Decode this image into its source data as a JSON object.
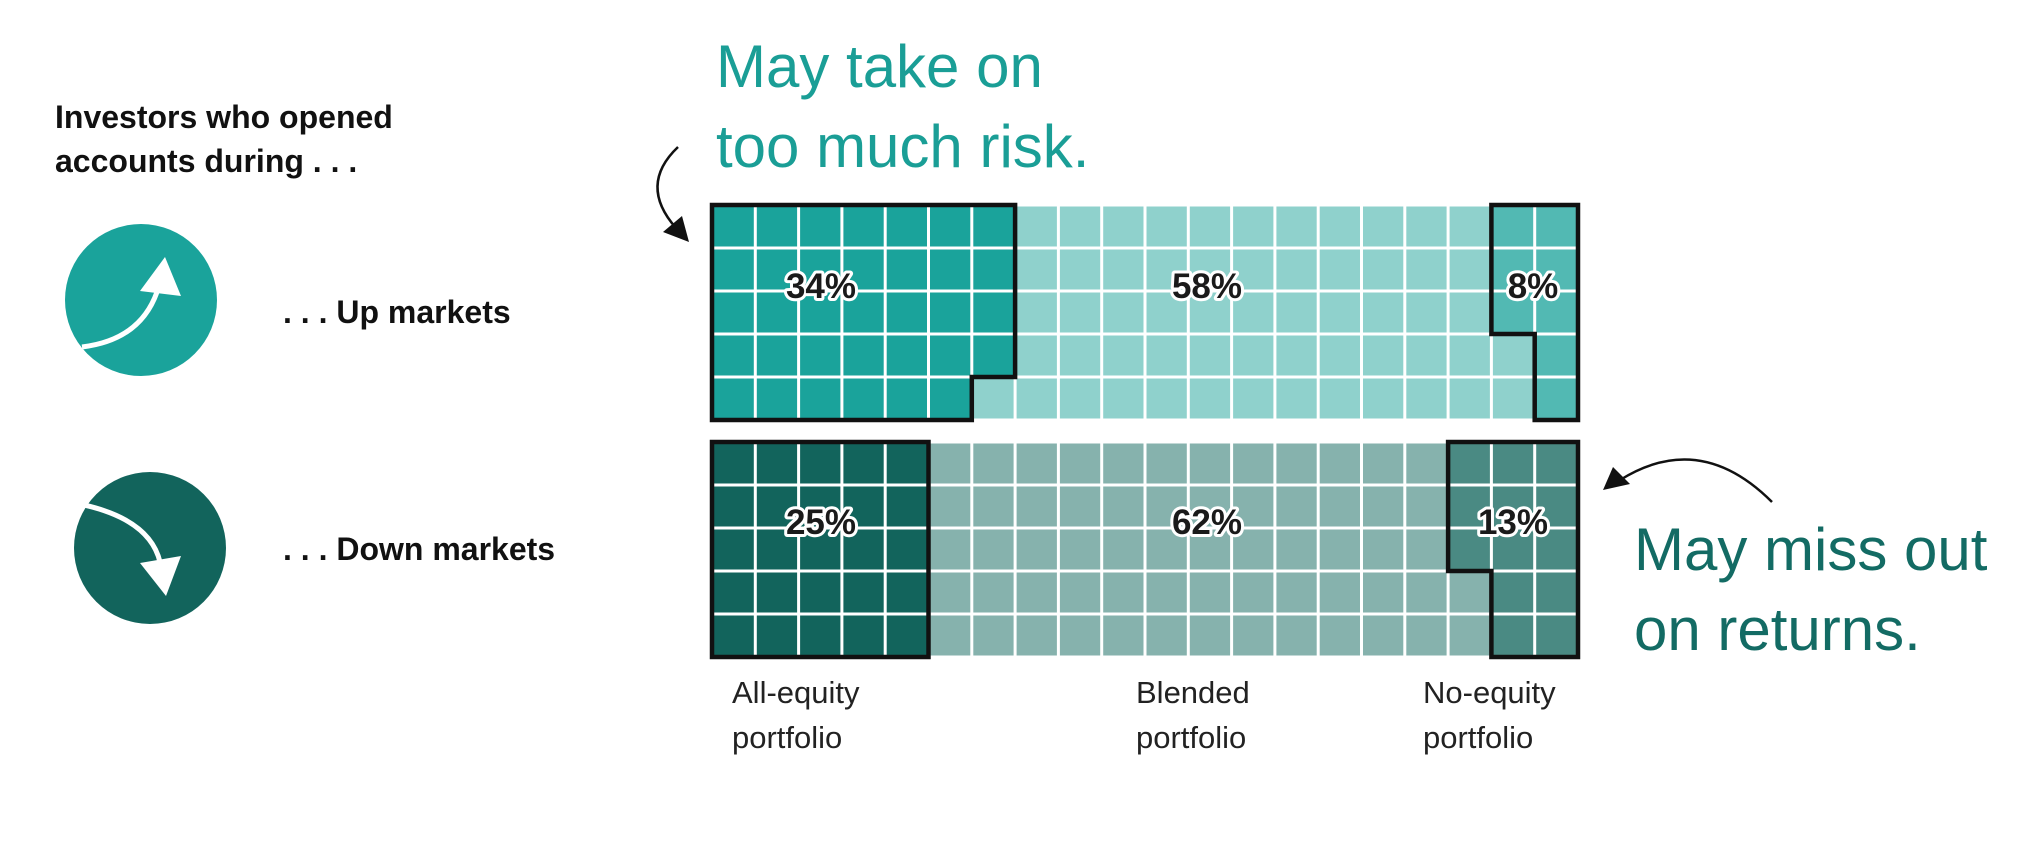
{
  "heading": {
    "line1": "Investors who opened",
    "line2": "accounts during . . ."
  },
  "markets": [
    {
      "id": "up",
      "label": ". . . Up markets",
      "icon": "trend-up-arrow-icon",
      "color": "#1aa39b"
    },
    {
      "id": "down",
      "label": ". . . Down markets",
      "icon": "trend-down-arrow-icon",
      "color": "#12645c"
    }
  ],
  "callouts": {
    "risk": {
      "line1": "May take on",
      "line2": "too much risk.",
      "color": "#1a9e96"
    },
    "returns": {
      "line1": "May miss out",
      "line2": "on returns.",
      "color": "#136b64"
    }
  },
  "portfolio_labels": [
    {
      "line1": "All-equity",
      "line2": "portfolio"
    },
    {
      "line1": "Blended",
      "line2": "portfolio"
    },
    {
      "line1": "No-equity",
      "line2": "portfolio"
    }
  ],
  "colors": {
    "up": {
      "all_equity": "#1aa39b",
      "blended": "#8fd1cc",
      "no_equity": "#52b9b3"
    },
    "down": {
      "all_equity": "#12645c",
      "blended": "#86b2ad",
      "no_equity": "#4a8a83"
    },
    "grid_line": "#ffffff",
    "outline": "#111111"
  },
  "chart_data": {
    "type": "waffle",
    "title": "Investors who opened accounts during . . .",
    "grid": {
      "rows": 5,
      "columns": 20,
      "unit": "1 cell = 1%"
    },
    "categories": [
      "All-equity portfolio",
      "Blended portfolio",
      "No-equity portfolio"
    ],
    "series": [
      {
        "name": ". . . Up markets",
        "values": [
          34,
          58,
          8
        ],
        "labels": [
          "34%",
          "58%",
          "8%"
        ]
      },
      {
        "name": ". . . Down markets",
        "values": [
          25,
          62,
          13
        ],
        "labels": [
          "25%",
          "62%",
          "13%"
        ]
      }
    ],
    "annotations": [
      {
        "text": "May take on too much risk.",
        "target": "All-equity portfolio, Up markets"
      },
      {
        "text": "May miss out on returns.",
        "target": "No-equity portfolio, Down markets"
      }
    ]
  }
}
